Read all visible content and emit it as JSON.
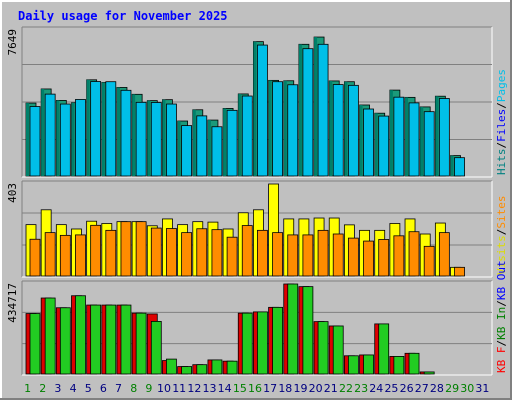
{
  "title": "Daily usage for November 2025",
  "colors": {
    "background": "#c0c0c0",
    "border_light": "#ffffff",
    "border_dark": "#808080",
    "grid": "#808080",
    "title_text": "#0000ff",
    "pages": "#00bfe8",
    "pages_shadow": "#00806a",
    "hits": "#1a9a7a",
    "visits": "#ffff00",
    "sites": "#ff8c00",
    "kb_in": "#22cc22",
    "kb_f": "#dd0000",
    "weekday_label": "#008000",
    "weekend_label": "#008000",
    "future_label": "#000080",
    "hits_label": "#008080",
    "files_label": "#0000ff",
    "pages_label": "#00bfe8",
    "visits_label": "#dddd00",
    "sites_label": "#ff8c00",
    "kbin_label": "#008000",
    "kbout_label": "#0000ff",
    "kbf_label": "#ff0000",
    "weekend_day_label": "#008000"
  },
  "chart_data": {
    "type": "bar",
    "title": "Daily usage for November 2025",
    "categories": [
      "1",
      "2",
      "3",
      "4",
      "5",
      "6",
      "7",
      "8",
      "9",
      "10",
      "11",
      "12",
      "13",
      "14",
      "15",
      "16",
      "17",
      "18",
      "19",
      "20",
      "21",
      "22",
      "23",
      "24",
      "25",
      "26",
      "27",
      "28",
      "29",
      "30",
      "31"
    ],
    "label_colors": [
      "green",
      "green",
      "black",
      "black",
      "black",
      "black",
      "black",
      "green",
      "green",
      "black",
      "black",
      "black",
      "black",
      "black",
      "green",
      "green",
      "black",
      "black",
      "black",
      "black",
      "black",
      "green",
      "green",
      "black",
      "black",
      "black",
      "black",
      "black",
      "green",
      "green",
      "black"
    ],
    "panels": [
      {
        "name": "top",
        "ytick": "7649",
        "ymax": 7649,
        "right_label": [
          "Hits",
          "/",
          "Files",
          "/",
          "Pages"
        ],
        "series": [
          {
            "name": "Hits",
            "values": [
              3820,
              4560,
              3960,
              3840,
              5040,
              4900,
              4640,
              4280,
              3950,
              4000,
              2880,
              3470,
              2930,
              3540,
              4300,
              7040,
              5010,
              4990,
              6900,
              7280,
              4980,
              4940,
              3720,
              3290,
              4500,
              4120,
              3620,
              4180,
              1070,
              null,
              null
            ]
          },
          {
            "name": "Pages",
            "values": [
              3640,
              4290,
              3770,
              4010,
              4950,
              4940,
              4490,
              3860,
              3850,
              3770,
              2640,
              3150,
              2580,
              3440,
              4190,
              6860,
              4940,
              4780,
              6670,
              6900,
              4790,
              4750,
              3510,
              3140,
              4130,
              3830,
              3370,
              4060,
              960,
              null,
              null
            ]
          }
        ]
      },
      {
        "name": "middle",
        "ytick": "403",
        "ymax": 403,
        "right_label": [
          "Visits",
          "/",
          "Sites"
        ],
        "series": [
          {
            "name": "Visits",
            "values": [
              225,
              290,
              225,
              206,
              240,
              230,
              238,
              238,
              220,
              250,
              225,
              238,
              236,
              206,
              277,
              290,
              403,
              250,
              250,
              254,
              254,
              224,
              200,
              200,
              230,
              250,
              184,
              232,
              38,
              null,
              null
            ]
          },
          {
            "name": "Sites",
            "values": [
              161,
              190,
              178,
              180,
              222,
              200,
              238,
              238,
              210,
              208,
              190,
              207,
              203,
              170,
              221,
              200,
              190,
              180,
              180,
              200,
              184,
              166,
              153,
              160,
              176,
              194,
              130,
              190,
              38,
              null,
              null
            ]
          }
        ]
      },
      {
        "name": "bottom",
        "ytick": "434717",
        "ymax": 434717,
        "right_label": [
          "KB F",
          "/",
          "KB In",
          "/",
          "KB Out"
        ],
        "series": [
          {
            "name": "KB F",
            "values": [
              292000,
              367000,
              320000,
              378000,
              333000,
              333000,
              333000,
              294000,
              290000,
              65000,
              36000,
              45000,
              68000,
              62000,
              294000,
              300000,
              322000,
              434717,
              422000,
              253000,
              232000,
              88000,
              92000,
              242000,
              85000,
              100000,
              10000,
              null,
              null,
              null,
              null
            ]
          },
          {
            "name": "KB In",
            "values": [
              292000,
              367000,
              320000,
              378000,
              333000,
              333000,
              333000,
              294000,
              254000,
              72000,
              36000,
              45000,
              68000,
              62000,
              294000,
              300000,
              322000,
              434717,
              422000,
              253000,
              232000,
              88000,
              92000,
              242000,
              85000,
              100000,
              10000,
              null,
              null,
              null,
              null
            ]
          }
        ]
      }
    ]
  }
}
